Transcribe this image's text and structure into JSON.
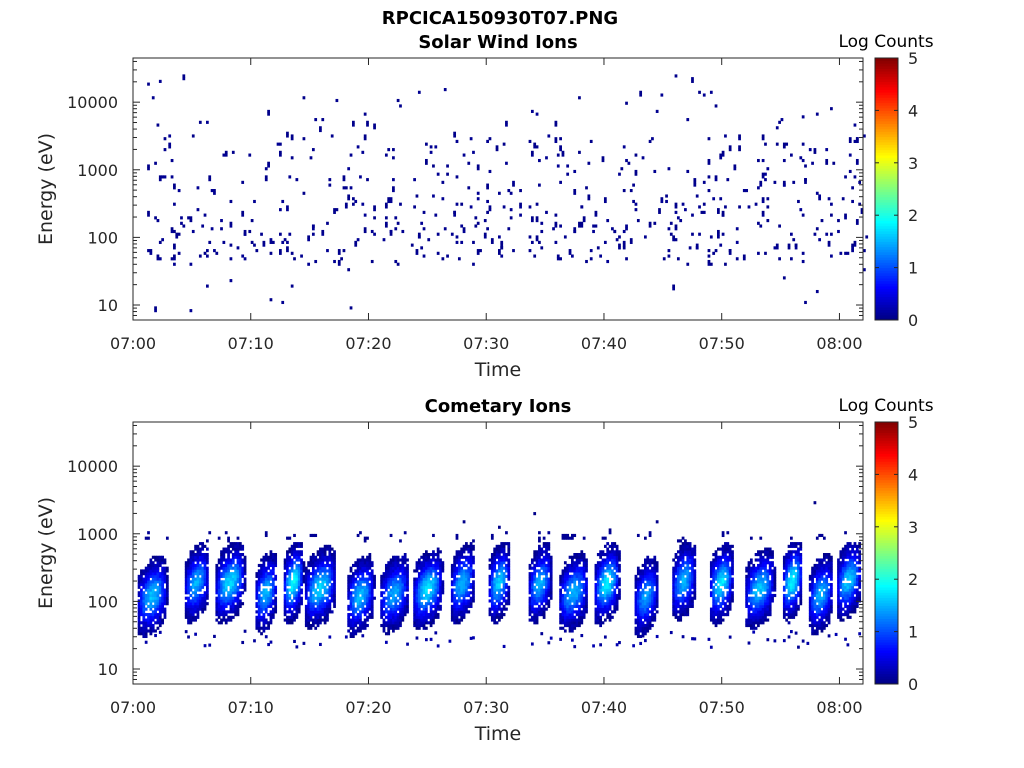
{
  "figure": {
    "title": "RPCICA150930T07.PNG"
  },
  "colorbar": {
    "label": "Log Counts",
    "ticks": [
      "0",
      "1",
      "2",
      "3",
      "4",
      "5"
    ],
    "range": [
      0,
      5
    ]
  },
  "chart_data": [
    {
      "type": "heatmap",
      "title": "Solar Wind Ions",
      "xlabel": "Time",
      "ylabel": "Energy (eV)",
      "x_ticks": [
        "07:00",
        "07:10",
        "07:20",
        "07:30",
        "07:40",
        "07:50",
        "08:00"
      ],
      "y_ticks": [
        "10",
        "100",
        "1000",
        "10000"
      ],
      "xlim_minutes_after_0700": [
        0,
        62
      ],
      "ylim_eV": [
        6,
        45000
      ],
      "y_scale": "log",
      "colormap": "jet",
      "color_range_log_counts": [
        0,
        5
      ],
      "description_of_data": "sparse single-count pixels (log counts ~0) scattered between ~10 eV and ~30000 eV, denser around 40-400 eV"
    },
    {
      "type": "heatmap",
      "title": "Cometary Ions",
      "xlabel": "Time",
      "ylabel": "Energy (eV)",
      "x_ticks": [
        "07:00",
        "07:10",
        "07:20",
        "07:30",
        "07:40",
        "07:50",
        "08:00"
      ],
      "y_ticks": [
        "10",
        "100",
        "1000",
        "10000"
      ],
      "xlim_minutes_after_0700": [
        0,
        62
      ],
      "ylim_eV": [
        6,
        45000
      ],
      "y_scale": "log",
      "colormap": "jet",
      "color_range_log_counts": [
        0,
        5
      ],
      "bursts_minutes_after_0700": [
        1.6,
        5.5,
        8.3,
        11.3,
        13.6,
        15.8,
        19.3,
        22.3,
        25.0,
        28.0,
        31.0,
        34.5,
        37.5,
        40.2,
        43.5,
        46.7,
        50.0,
        53.3,
        56.0,
        58.5,
        60.7
      ],
      "description_of_data": "periodic bursts spanning ~30-600 eV with peak log counts ~1.5-1.9 near 100-200 eV"
    }
  ]
}
